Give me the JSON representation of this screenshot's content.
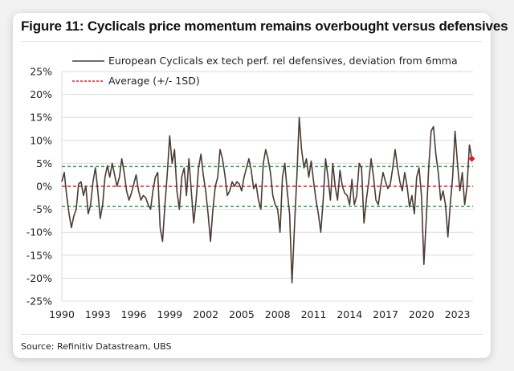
{
  "title": "Figure 11: Cyclicals price momentum remains overbought versus defensives",
  "source": "Source: Refinitiv Datastream, UBS",
  "colors": {
    "series": "#4a3b35",
    "average": "#e02020",
    "sd_band": "#2fa04f",
    "last_point": "#e8191f",
    "grid": "#dcdcdc"
  },
  "chart_data": {
    "type": "line",
    "title": "Figure 11: Cyclicals price momentum remains overbought versus defensives",
    "xlabel": "",
    "ylabel": "",
    "xlim": [
      1990,
      2024.3
    ],
    "ylim": [
      -25,
      25
    ],
    "x_ticks": [
      "1990",
      "1993",
      "1996",
      "1999",
      "2002",
      "2005",
      "2008",
      "2011",
      "2014",
      "2017",
      "2020",
      "2023"
    ],
    "y_ticks": [
      "25%",
      "20%",
      "15%",
      "10%",
      "5%",
      "0%",
      "-5%",
      "-10%",
      "-15%",
      "-20%",
      "-25%"
    ],
    "grid": "horizontal",
    "legend_position": "top-left",
    "legend": [
      {
        "label": "European Cyclicals ex tech perf. rel defensives, deviation from 6mma",
        "style": "solid"
      },
      {
        "label": "Average (+/- 1SD)",
        "style": "dashed"
      }
    ],
    "reference_lines": [
      {
        "name": "average",
        "value": 0.0
      },
      {
        "name": "plus_1sd",
        "value": 4.3
      },
      {
        "name": "minus_1sd",
        "value": -4.4
      }
    ],
    "last_point": {
      "x": 2024.2,
      "y": 6.0
    },
    "series": [
      {
        "name": "European Cyclicals ex tech perf. rel defensives, deviation from 6mma",
        "x": [
          1990.0,
          1990.2,
          1990.4,
          1990.6,
          1990.8,
          1991.0,
          1991.2,
          1991.4,
          1991.6,
          1991.8,
          1992.0,
          1992.2,
          1992.4,
          1992.6,
          1992.8,
          1993.0,
          1993.2,
          1993.4,
          1993.6,
          1993.8,
          1994.0,
          1994.2,
          1994.4,
          1994.6,
          1994.8,
          1995.0,
          1995.2,
          1995.4,
          1995.6,
          1995.8,
          1996.0,
          1996.2,
          1996.4,
          1996.6,
          1996.8,
          1997.0,
          1997.2,
          1997.4,
          1997.6,
          1997.8,
          1998.0,
          1998.2,
          1998.4,
          1998.6,
          1998.8,
          1999.0,
          1999.2,
          1999.4,
          1999.6,
          1999.8,
          2000.0,
          2000.2,
          2000.4,
          2000.6,
          2000.8,
          2001.0,
          2001.2,
          2001.4,
          2001.6,
          2001.8,
          2002.0,
          2002.2,
          2002.4,
          2002.6,
          2002.8,
          2003.0,
          2003.2,
          2003.4,
          2003.6,
          2003.8,
          2004.0,
          2004.2,
          2004.4,
          2004.6,
          2004.8,
          2005.0,
          2005.2,
          2005.4,
          2005.6,
          2005.8,
          2006.0,
          2006.2,
          2006.4,
          2006.6,
          2006.8,
          2007.0,
          2007.2,
          2007.4,
          2007.6,
          2007.8,
          2008.0,
          2008.2,
          2008.4,
          2008.6,
          2008.8,
          2009.0,
          2009.2,
          2009.4,
          2009.6,
          2009.8,
          2010.0,
          2010.2,
          2010.4,
          2010.6,
          2010.8,
          2011.0,
          2011.2,
          2011.4,
          2011.6,
          2011.8,
          2012.0,
          2012.2,
          2012.4,
          2012.6,
          2012.8,
          2013.0,
          2013.2,
          2013.4,
          2013.6,
          2013.8,
          2014.0,
          2014.2,
          2014.4,
          2014.6,
          2014.8,
          2015.0,
          2015.2,
          2015.4,
          2015.6,
          2015.8,
          2016.0,
          2016.2,
          2016.4,
          2016.6,
          2016.8,
          2017.0,
          2017.2,
          2017.4,
          2017.6,
          2017.8,
          2018.0,
          2018.2,
          2018.4,
          2018.6,
          2018.8,
          2019.0,
          2019.2,
          2019.4,
          2019.6,
          2019.8,
          2020.0,
          2020.2,
          2020.4,
          2020.6,
          2020.8,
          2021.0,
          2021.2,
          2021.4,
          2021.6,
          2021.8,
          2022.0,
          2022.2,
          2022.4,
          2022.6,
          2022.8,
          2023.0,
          2023.2,
          2023.4,
          2023.6,
          2023.8,
          2024.0,
          2024.2
        ],
        "values": [
          1.0,
          3.0,
          -2.0,
          -6.0,
          -9.0,
          -6.5,
          -5.0,
          0.5,
          1.0,
          -2.0,
          0.0,
          -6.0,
          -4.0,
          1.0,
          4.0,
          -1.0,
          -7.0,
          -4.0,
          2.0,
          4.5,
          2.0,
          5.0,
          2.5,
          0.0,
          2.0,
          6.0,
          3.0,
          -1.0,
          -3.0,
          -1.5,
          0.5,
          2.5,
          -1.0,
          -3.0,
          -2.0,
          -2.5,
          -4.0,
          -5.0,
          -1.0,
          2.0,
          3.0,
          -9.0,
          -12.0,
          -4.0,
          3.0,
          11.0,
          5.0,
          8.0,
          -1.0,
          -5.0,
          2.0,
          4.0,
          -2.0,
          6.0,
          -1.0,
          -8.0,
          -3.0,
          4.0,
          7.0,
          2.5,
          -1.0,
          -6.0,
          -12.0,
          -5.0,
          0.0,
          2.0,
          8.0,
          6.0,
          2.5,
          -2.0,
          -1.0,
          1.0,
          0.0,
          1.0,
          0.5,
          -1.0,
          2.0,
          4.0,
          6.0,
          3.5,
          -0.5,
          0.5,
          -3.0,
          -5.0,
          5.0,
          8.0,
          6.0,
          3.0,
          -2.0,
          -4.0,
          -5.0,
          -10.0,
          2.0,
          5.0,
          -1.0,
          -6.0,
          -21.0,
          -9.0,
          2.0,
          15.0,
          8.0,
          4.0,
          6.0,
          2.0,
          5.5,
          1.0,
          -3.0,
          -6.0,
          -10.0,
          -3.0,
          6.0,
          2.0,
          -3.0,
          5.0,
          0.0,
          -3.0,
          3.5,
          0.0,
          -1.5,
          -2.0,
          -4.0,
          1.5,
          -4.0,
          -2.0,
          5.0,
          4.0,
          -8.0,
          -3.0,
          1.0,
          6.0,
          2.0,
          -3.0,
          -4.0,
          0.0,
          3.0,
          1.0,
          -0.5,
          0.5,
          4.0,
          8.0,
          4.0,
          1.0,
          -1.0,
          3.0,
          0.0,
          -4.5,
          -2.0,
          -6.0,
          2.0,
          4.0,
          -2.0,
          -17.0,
          -7.0,
          4.0,
          12.0,
          13.0,
          7.0,
          3.0,
          -3.0,
          -1.0,
          -4.0,
          -11.0,
          -4.0,
          2.0,
          12.0,
          5.0,
          -1.0,
          3.0,
          -4.0,
          0.0,
          9.0,
          6.0
        ]
      }
    ]
  }
}
